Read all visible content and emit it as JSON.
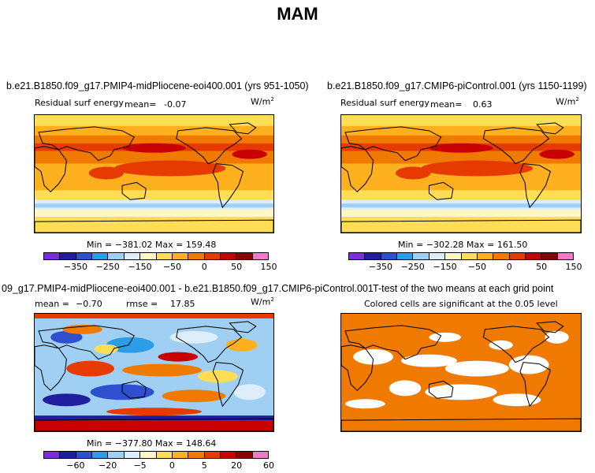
{
  "title": "MAM",
  "colors": {
    "palette": [
      "#7b2ee0",
      "#1e1e9e",
      "#2e4fd0",
      "#2a9de6",
      "#9fd0f3",
      "#ddeefa",
      "#fff8c6",
      "#ffdd55",
      "#ffb01f",
      "#f07a00",
      "#e63a00",
      "#c80000",
      "#8a0000",
      "#f07ac8"
    ],
    "sig": "#f07a00",
    "continent": "#000000"
  },
  "chart_data": [
    {
      "type": "heatmap",
      "title": "b.e21.B1850.f09_g17.PMIP4-midPliocene-eoi400.001 (yrs 951-1050)",
      "subtitle": "Residual surf energy",
      "mean_label": "mean=",
      "mean": "-0.07",
      "units": "W/m",
      "units_exp": "2",
      "min_max": "Min = −381.02 Max = 159.48",
      "colorbar_ticks": [
        "−350",
        "−250",
        "−150",
        "−50",
        "0",
        "50",
        "150"
      ]
    },
    {
      "type": "heatmap",
      "title": "b.e21.B1850.f09_g17.CMIP6-piControl.001 (yrs 1150-1199)",
      "subtitle": "Residual surf energy",
      "mean_label": "mean=",
      "mean": "0.63",
      "units": "W/m",
      "units_exp": "2",
      "min_max": "Min = −302.28 Max = 161.50",
      "colorbar_ticks": [
        "−350",
        "−250",
        "−150",
        "−50",
        "0",
        "50",
        "150"
      ]
    },
    {
      "type": "heatmap",
      "title": "09_g17.PMIP4-midPliocene-eoi400.001 - b.e21.B1850.f09_g17.CMIP6-piControl.001",
      "mean_label": "mean =",
      "mean": "−0.70",
      "rmse_label": "rmse =",
      "rmse": "17.85",
      "units": "W/m",
      "units_exp": "2",
      "min_max": "Min = −377.80 Max = 148.64",
      "colorbar_ticks": [
        "−60",
        "−20",
        "−5",
        "0",
        "5",
        "20",
        "60"
      ]
    },
    {
      "type": "heatmap",
      "title": "T-test of the two means at each grid point",
      "subtitle": "Colored cells are significant at the 0.05 level"
    }
  ]
}
